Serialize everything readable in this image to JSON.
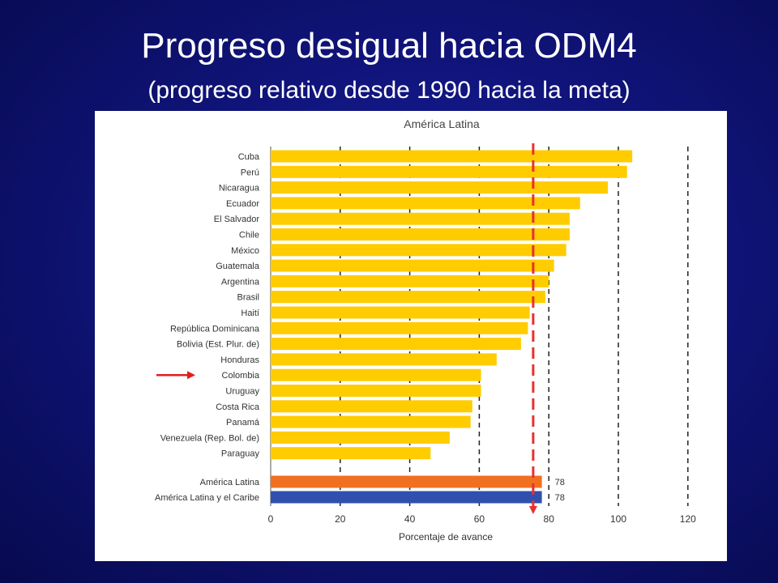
{
  "slide": {
    "title": "Progreso desigual hacia ODM4",
    "subtitle": "(progreso relativo desde 1990 hacia la meta)"
  },
  "chart_data": {
    "type": "bar",
    "orientation": "horizontal",
    "title": "América Latina",
    "xlabel": "Porcentaje de avance",
    "ylabel": "",
    "xlim": [
      0,
      120
    ],
    "xticks": [
      0,
      20,
      40,
      60,
      80,
      100,
      120
    ],
    "grid": "vertical-dashed",
    "categories": [
      "Cuba",
      "Perú",
      "Nicaragua",
      "Ecuador",
      "El Salvador",
      "Chile",
      "México",
      "Guatemala",
      "Argentina",
      "Brasil",
      "Haití",
      "República Dominicana",
      "Bolivia (Est. Plur. de)",
      "Honduras",
      "Colombia",
      "Uruguay",
      "Costa Rica",
      "Panamá",
      "Venezuela (Rep. Bol. de)",
      "Paraguay"
    ],
    "values": [
      104,
      102.5,
      97,
      89,
      86,
      86,
      85,
      81.5,
      80,
      79,
      74.5,
      74,
      72,
      65,
      60.5,
      60.5,
      58,
      57.5,
      51.5,
      46
    ],
    "bar_color": "#ffcc00",
    "aggregates": [
      {
        "label": "América Latina",
        "value": 78,
        "data_label": "78",
        "color": "#f07020"
      },
      {
        "label": "América Latina y el Caribe",
        "value": 78,
        "data_label": "78",
        "color": "#3050b0"
      }
    ],
    "reference_line": {
      "value": 75.5,
      "style": "dashed",
      "color": "#e83030"
    },
    "highlight": {
      "category": "Colombia",
      "marker": "arrow",
      "color": "#e02020"
    }
  }
}
